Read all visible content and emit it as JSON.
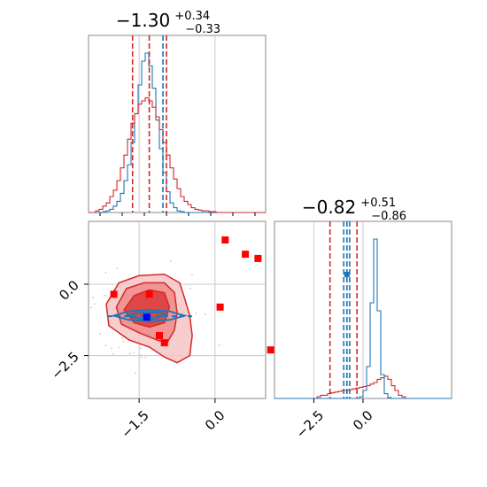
{
  "chart_data": [
    {
      "type": "histogram",
      "panel": "top-left",
      "title": {
        "main": "−1.30",
        "sup": "+0.34",
        "sub": "−0.33"
      },
      "xlim": [
        -2.5,
        1.0
      ],
      "grid": true,
      "series": [
        {
          "color": "#1f77b4",
          "values": [
            0,
            0,
            0,
            0,
            0.005,
            0.01,
            0.02,
            0.04,
            0.07,
            0.12,
            0.2,
            0.3,
            0.44,
            0.62,
            0.8,
            0.95,
            1.0,
            0.92,
            0.78,
            0.58,
            0.4,
            0.25,
            0.13,
            0.06,
            0.03,
            0.01,
            0.005,
            0,
            0,
            0,
            0,
            0,
            0,
            0,
            0,
            0,
            0,
            0,
            0,
            0,
            0,
            0,
            0,
            0,
            0,
            0,
            0,
            0,
            0,
            0
          ]
        },
        {
          "color": "#d62728",
          "values": [
            0,
            0,
            0.01,
            0.02,
            0.04,
            0.06,
            0.1,
            0.14,
            0.2,
            0.28,
            0.36,
            0.46,
            0.56,
            0.62,
            0.68,
            0.7,
            0.72,
            0.7,
            0.66,
            0.6,
            0.52,
            0.44,
            0.36,
            0.28,
            0.21,
            0.15,
            0.1,
            0.07,
            0.05,
            0.03,
            0.02,
            0.015,
            0.01,
            0.01,
            0.005,
            0.005,
            0,
            0,
            0,
            0,
            0,
            0,
            0,
            0,
            0,
            0,
            0,
            0,
            0,
            0
          ]
        }
      ],
      "quantile_lines": [
        {
          "color": "#d62728",
          "values": [
            -1.63,
            -1.3,
            -0.96
          ]
        },
        {
          "color": "#1f77b4",
          "values": [
            -1.03
          ]
        }
      ]
    },
    {
      "type": "histogram",
      "panel": "bottom-right",
      "title": {
        "main": "−0.82",
        "sup": "+0.51",
        "sub": "−0.86"
      },
      "xlim": [
        -4.5,
        4.5
      ],
      "xticks": [
        -2.5,
        0.0
      ],
      "xticklabels": [
        "−2.5",
        "0.0"
      ],
      "grid": true,
      "series": [
        {
          "color": "#d62728",
          "values": [
            0,
            0,
            0,
            0,
            0,
            0,
            0,
            0,
            0,
            0,
            0,
            0,
            0.01,
            0.02,
            0.02,
            0.03,
            0.035,
            0.04,
            0.045,
            0.05,
            0.05,
            0.055,
            0.06,
            0.065,
            0.07,
            0.075,
            0.08,
            0.09,
            0.1,
            0.12,
            0.13,
            0.14,
            0.12,
            0.08,
            0.05,
            0.02,
            0.01,
            0,
            0,
            0,
            0,
            0,
            0,
            0,
            0,
            0,
            0,
            0,
            0,
            0
          ]
        },
        {
          "color": "#1f77b4",
          "values": [
            0,
            0,
            0,
            0,
            0,
            0,
            0,
            0,
            0,
            0,
            0,
            0,
            0,
            0,
            0,
            0,
            0,
            0,
            0,
            0,
            0,
            0,
            0,
            0,
            0.01,
            0.05,
            0.2,
            0.6,
            1.0,
            0.55,
            0.15,
            0.03,
            0.005,
            0,
            0,
            0,
            0,
            0,
            0,
            0,
            0,
            0,
            0,
            0,
            0,
            0,
            0,
            0,
            0,
            0
          ]
        }
      ],
      "quantile_lines": [
        {
          "color": "#d62728",
          "values": [
            -1.68,
            -0.82,
            -0.31
          ]
        },
        {
          "color": "#1f77b4",
          "values": [
            -0.98,
            -0.82,
            -0.68
          ]
        }
      ]
    },
    {
      "type": "scatter",
      "panel": "bottom-left",
      "xlim": [
        -2.5,
        1.0
      ],
      "ylim": [
        -4.0,
        2.2
      ],
      "xticks": [
        -1.5,
        0.0
      ],
      "xticklabels": [
        "−1.5",
        "0.0"
      ],
      "yticks": [
        0.0,
        -2.5
      ],
      "yticklabels": [
        "0.0",
        "−2.5"
      ],
      "grid": true,
      "red_squares": [
        {
          "x": -2.0,
          "y": -0.35
        },
        {
          "x": -1.3,
          "y": -0.35
        },
        {
          "x": -1.1,
          "y": -1.8
        },
        {
          "x": -1.0,
          "y": -2.05
        },
        {
          "x": 0.1,
          "y": -0.8
        },
        {
          "x": 0.2,
          "y": 1.55
        },
        {
          "x": 0.6,
          "y": 1.05
        },
        {
          "x": 0.85,
          "y": 0.9
        },
        {
          "x": 1.1,
          "y": -2.3
        }
      ],
      "blue_squares": [
        {
          "x": -1.35,
          "y": -1.15
        }
      ],
      "red_contours": [
        [
          [
            -2.15,
            -0.7
          ],
          [
            -1.9,
            0.05
          ],
          [
            -1.5,
            0.3
          ],
          [
            -1.0,
            0.35
          ],
          [
            -0.7,
            0.05
          ],
          [
            -0.6,
            -0.5
          ],
          [
            -0.5,
            -1.1
          ],
          [
            -0.45,
            -1.8
          ],
          [
            -0.5,
            -2.5
          ],
          [
            -0.75,
            -2.75
          ],
          [
            -1.0,
            -2.55
          ],
          [
            -1.3,
            -2.2
          ],
          [
            -1.7,
            -1.95
          ],
          [
            -2.1,
            -1.45
          ]
        ],
        [
          [
            -1.95,
            -0.8
          ],
          [
            -1.75,
            -0.15
          ],
          [
            -1.4,
            0.05
          ],
          [
            -1.0,
            0.05
          ],
          [
            -0.8,
            -0.3
          ],
          [
            -0.75,
            -1.0
          ],
          [
            -0.8,
            -1.6
          ],
          [
            -0.95,
            -2.05
          ],
          [
            -1.15,
            -1.95
          ],
          [
            -1.5,
            -1.7
          ],
          [
            -1.85,
            -1.4
          ]
        ],
        [
          [
            -1.8,
            -0.9
          ],
          [
            -1.6,
            -0.4
          ],
          [
            -1.3,
            -0.2
          ],
          [
            -1.0,
            -0.3
          ],
          [
            -0.9,
            -0.8
          ],
          [
            -1.0,
            -1.35
          ],
          [
            -1.3,
            -1.5
          ],
          [
            -1.6,
            -1.35
          ]
        ]
      ],
      "blue_contours": [
        [
          [
            -2.0,
            -1.1
          ],
          [
            -1.7,
            -0.95
          ],
          [
            -1.3,
            -0.9
          ],
          [
            -0.9,
            -0.95
          ],
          [
            -0.6,
            -1.1
          ],
          [
            -0.9,
            -1.25
          ],
          [
            -1.3,
            -1.3
          ],
          [
            -1.7,
            -1.25
          ]
        ],
        [
          [
            -1.75,
            -1.1
          ],
          [
            -1.5,
            -1.0
          ],
          [
            -1.2,
            -0.98
          ],
          [
            -0.95,
            -1.05
          ],
          [
            -1.2,
            -1.2
          ],
          [
            -1.5,
            -1.2
          ]
        ]
      ]
    }
  ]
}
